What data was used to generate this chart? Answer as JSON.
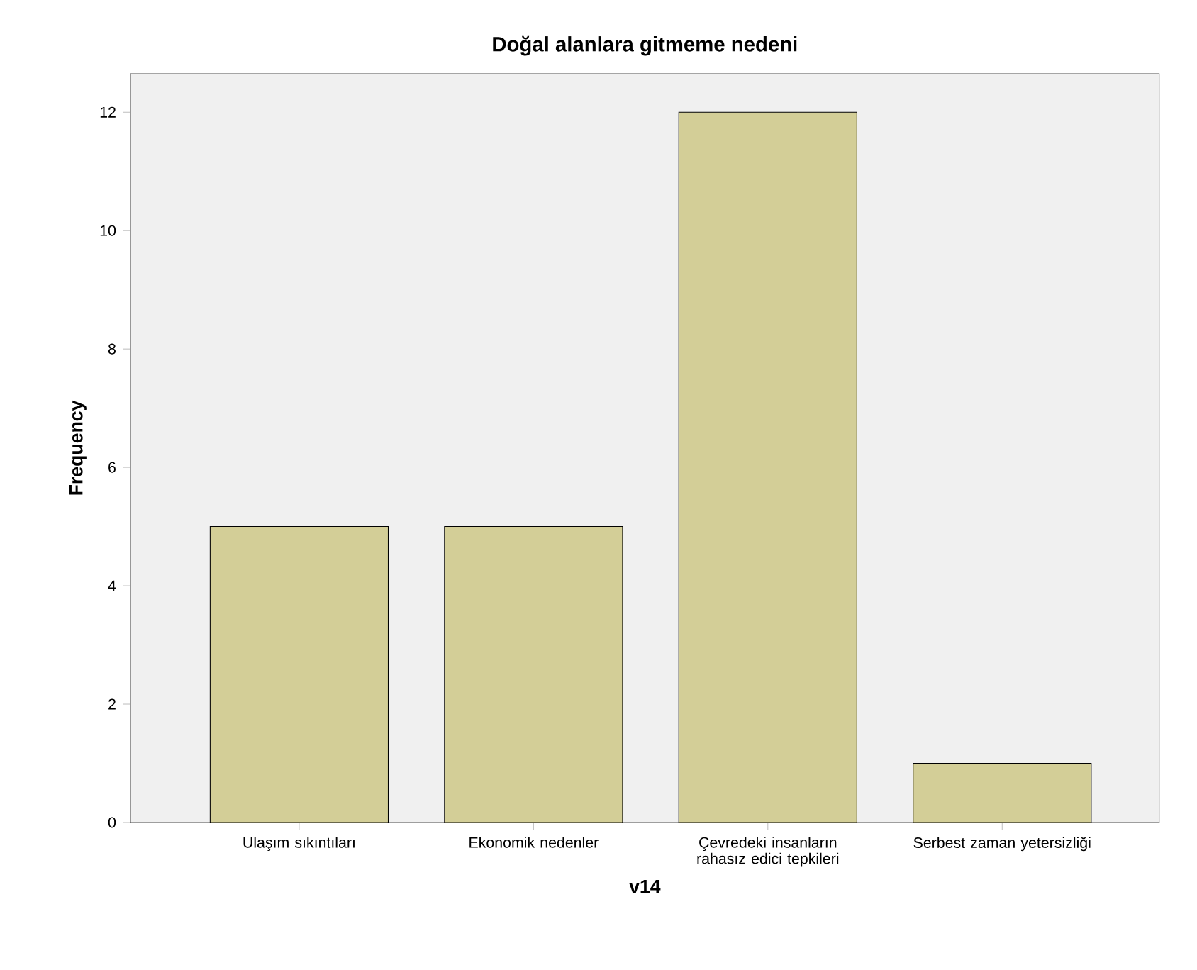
{
  "chart_data": {
    "type": "bar",
    "title": "Doğal alanlara gitmeme nedeni",
    "xlabel": "v14",
    "ylabel": "Frequency",
    "categories": [
      "Ulaşım sıkıntıları",
      "Ekonomik nedenler",
      "Çevredeki insanların rahasız edici tepkileri",
      "Serbest zaman yetersizliği"
    ],
    "values": [
      5,
      5,
      12,
      1
    ],
    "color": "#d3ce97",
    "ylim": [
      0,
      12.65
    ],
    "yticks": [
      0,
      2,
      4,
      6,
      8,
      10,
      12
    ]
  }
}
